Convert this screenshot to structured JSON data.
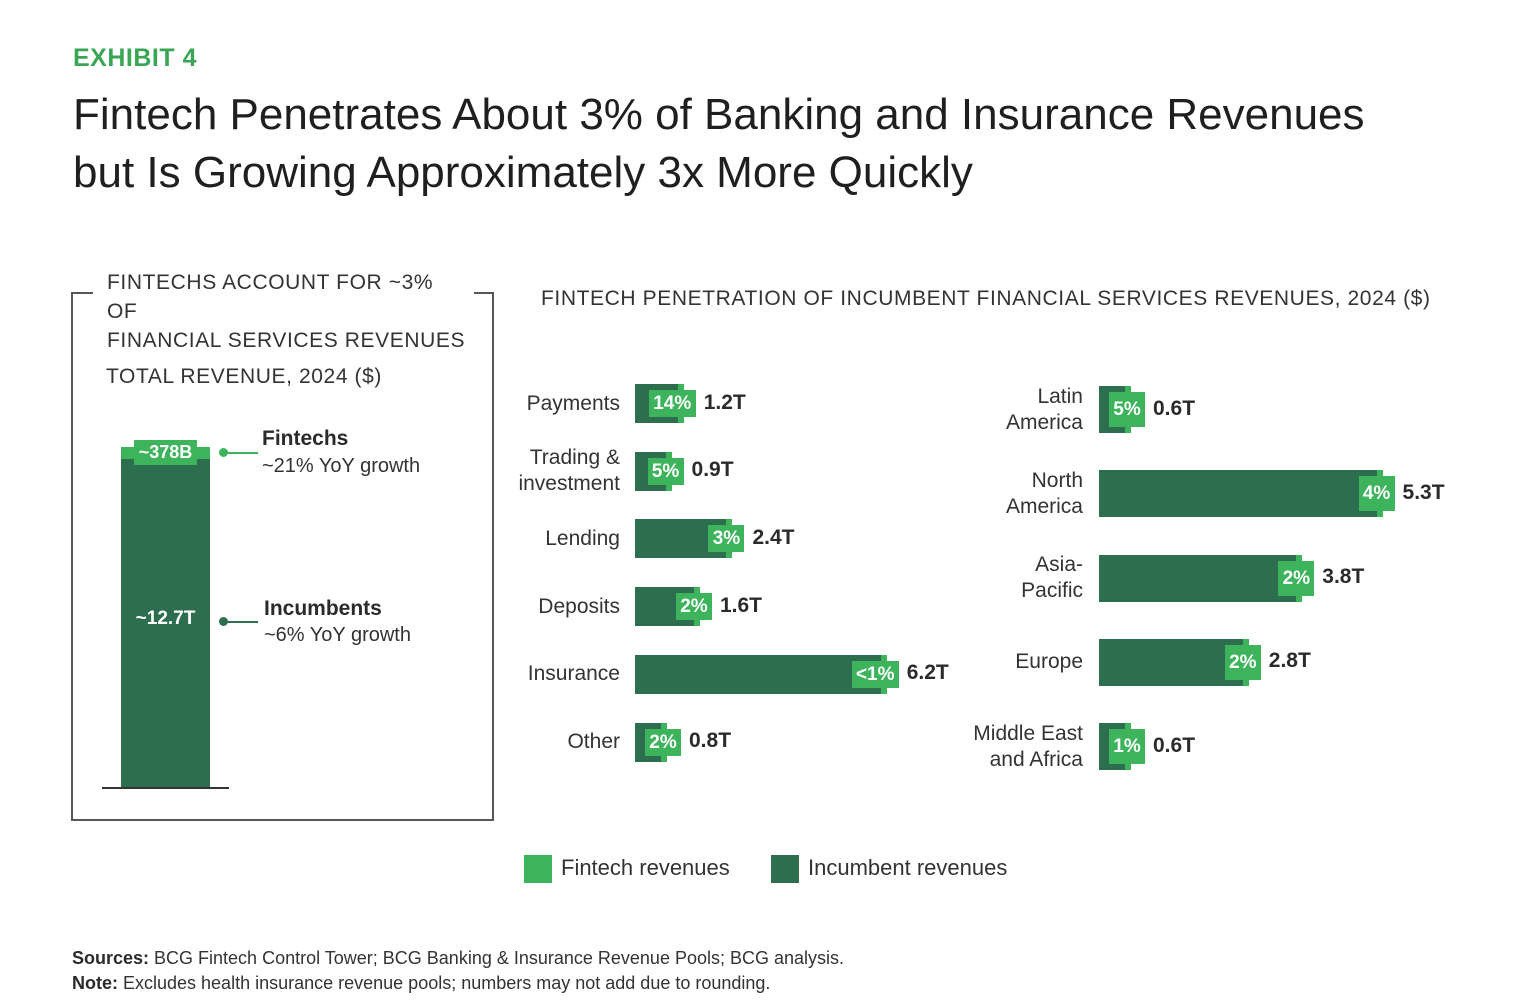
{
  "exhibit": "EXHIBIT 4",
  "title_lines": [
    "Fintech Penetrates About 3% of Banking and Insurance Revenues",
    "but Is Growing Approximately 3x More Quickly"
  ],
  "left_panel": {
    "heading_lines": [
      "FINTECHS ACCOUNT FOR ~3% OF",
      "FINANCIAL SERVICES REVENUES"
    ],
    "total_label": "TOTAL REVENUE, 2024 ($)",
    "fintech_value": "~378B",
    "incumbent_value": "~12.7T",
    "fintech_name": "Fintechs",
    "fintech_growth": "~21% YoY growth",
    "incumbent_name": "Incumbents",
    "incumbent_growth": "~6% YoY growth"
  },
  "right_heading": "FINTECH PENETRATION OF INCUMBENT FINANCIAL SERVICES REVENUES, 2024 ($)",
  "chart_data": [
    {
      "type": "bar",
      "title": "TOTAL REVENUE, 2024 ($)",
      "categories": [
        ""
      ],
      "series": [
        {
          "name": "Fintech revenues",
          "values": [
            0.378
          ],
          "label": "~378B"
        },
        {
          "name": "Incumbent revenues",
          "values": [
            12.7
          ],
          "label": "~12.7T"
        }
      ]
    },
    {
      "type": "bar",
      "orientation": "horizontal",
      "title": "FINTECH PENETRATION OF INCUMBENT FINANCIAL SERVICES REVENUES, 2024 ($)",
      "group": "product",
      "categories": [
        [
          "Payments"
        ],
        [
          "Trading &",
          "investment"
        ],
        [
          "Lending"
        ],
        [
          "Deposits"
        ],
        [
          "Insurance"
        ],
        [
          "Other"
        ]
      ],
      "values": [
        1.2,
        0.9,
        2.4,
        1.6,
        6.2,
        0.8
      ],
      "value_labels": [
        "1.2T",
        "0.9T",
        "2.4T",
        "1.6T",
        "6.2T",
        "0.8T"
      ],
      "fintech_share_labels": [
        "14%",
        "5%",
        "3%",
        "2%",
        "<1%",
        "2%"
      ]
    },
    {
      "type": "bar",
      "orientation": "horizontal",
      "group": "region",
      "categories": [
        [
          "Latin",
          "America"
        ],
        [
          "North",
          "America"
        ],
        [
          "Asia-",
          "Pacific"
        ],
        [
          "Europe"
        ],
        [
          "Middle East",
          "and Africa"
        ]
      ],
      "values": [
        0.6,
        5.3,
        3.8,
        2.8,
        0.6
      ],
      "value_labels": [
        "0.6T",
        "5.3T",
        "3.8T",
        "2.8T",
        "0.6T"
      ],
      "fintech_share_labels": [
        "5%",
        "4%",
        "2%",
        "2%",
        "1%"
      ]
    }
  ],
  "legend": [
    {
      "label": "Fintech revenues",
      "color": "#3db35c"
    },
    {
      "label": "Incumbent revenues",
      "color": "#2c6e4e"
    }
  ],
  "colors": {
    "accent": "#3aa655",
    "fintech": "#3db35c",
    "incumbent": "#2c6e4e"
  },
  "sources": {
    "sources_label": "Sources:",
    "sources_text": " BCG Fintech Control Tower; BCG Banking & Insurance Revenue Pools; BCG analysis.",
    "note_label": "Note:",
    "note_text": " Excludes health insurance revenue pools; numbers may not add due to rounding."
  }
}
